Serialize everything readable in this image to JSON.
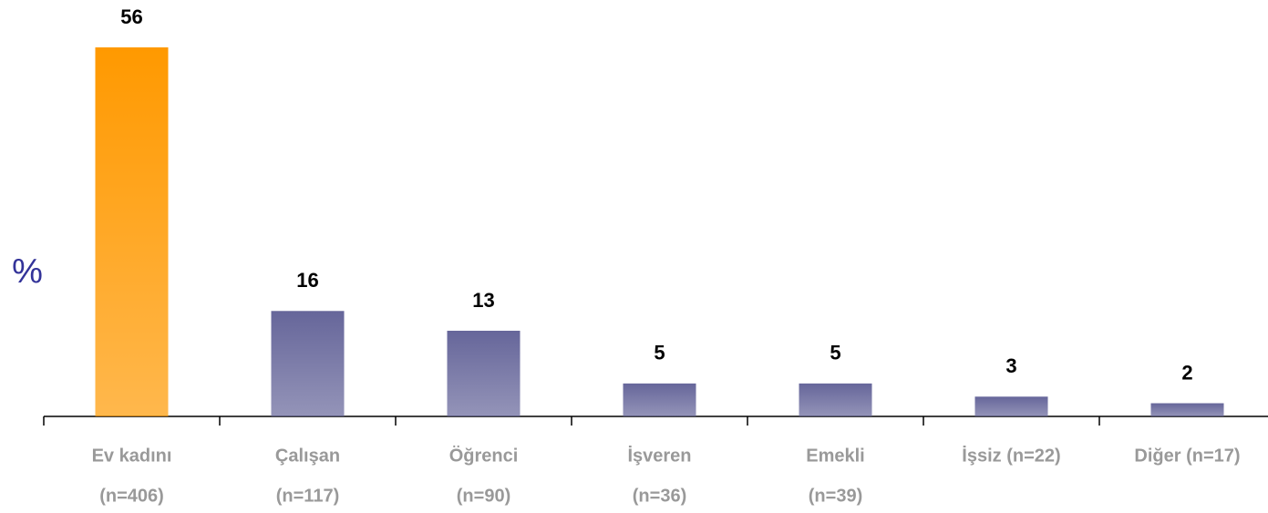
{
  "chart_data": {
    "type": "bar",
    "y_label": "%",
    "categories": [
      [
        "Ev kadını",
        "(n=406)"
      ],
      [
        "Çalışan",
        "(n=117)"
      ],
      [
        "Öğrenci",
        "(n=90)"
      ],
      [
        "İşveren",
        "(n=36)"
      ],
      [
        "Emekli",
        "(n=39)"
      ],
      [
        "İşsiz (n=22)"
      ],
      [
        "Diğer (n=17)"
      ]
    ],
    "values": [
      56,
      16,
      13,
      5,
      5,
      3,
      2
    ],
    "colors": [
      "#ff9900",
      "#66669a",
      "#66669a",
      "#66669a",
      "#66669a",
      "#66669a",
      "#66669a"
    ]
  }
}
